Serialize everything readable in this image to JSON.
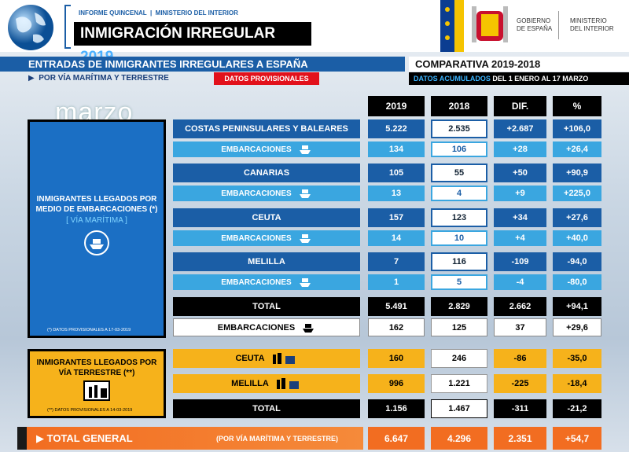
{
  "header": {
    "report": "INFORME QUINCENAL",
    "ministry": "MINISTERIO DEL INTERIOR",
    "title": "INMIGRACIÓN IRREGULAR",
    "year": "2019",
    "gov_line1": "GOBIERNO",
    "gov_line2": "DE ESPAÑA",
    "min_line1": "MINISTERIO",
    "min_line2": "DEL INTERIOR"
  },
  "banner": {
    "title": "ENTRADAS DE INMIGRANTES IRREGULARES A ESPAÑA",
    "comparison": "COMPARATIVA  2019-2018",
    "subtitle": "POR VÍA MARÍTIMA Y TERRESTRE",
    "provisional": "DATOS PROVISIONALES",
    "accumulated": "DATOS ACUMULADOS",
    "period": "DEL 1 ENERO AL 17 MARZO"
  },
  "month": "marzo",
  "maritime_box": {
    "heading": "INMIGRANTES LLEGADOS POR MEDIO DE EMBARCACIONES (*)",
    "route": "[ VÍA MARÍTIMA ]",
    "note": "(*) DATOS PROVISIONALES A 17-03-2019"
  },
  "land_box": {
    "heading": "INMIGRANTES LLEGADOS POR VÍA TERRESTRE (**)",
    "note": "(**) DATOS PROVISIONALES A 14-03-2019"
  },
  "table": {
    "columns": [
      "2019",
      "2018",
      "DIF.",
      "%"
    ],
    "rows": [
      {
        "label": "COSTAS PENINSULARES Y BALEARES",
        "values": [
          "5.222",
          "2.535",
          "+2.687",
          "+106,0"
        ]
      },
      {
        "label": "EMBARCACIONES",
        "values": [
          "134",
          "106",
          "+28",
          "+26,4"
        ]
      },
      {
        "label": "CANARIAS",
        "values": [
          "105",
          "55",
          "+50",
          "+90,9"
        ]
      },
      {
        "label": "EMBARCACIONES",
        "values": [
          "13",
          "4",
          "+9",
          "+225,0"
        ]
      },
      {
        "label": "CEUTA",
        "values": [
          "157",
          "123",
          "+34",
          "+27,6"
        ]
      },
      {
        "label": "EMBARCACIONES",
        "values": [
          "14",
          "10",
          "+4",
          "+40,0"
        ]
      },
      {
        "label": "MELILLA",
        "values": [
          "7",
          "116",
          "-109",
          "-94,0"
        ]
      },
      {
        "label": "EMBARCACIONES",
        "values": [
          "1",
          "5",
          "-4",
          "-80,0"
        ]
      },
      {
        "label": "TOTAL",
        "values": [
          "5.491",
          "2.829",
          "2.662",
          "+94,1"
        ]
      },
      {
        "label": "EMBARCACIONES",
        "values": [
          "162",
          "125",
          "37",
          "+29,6"
        ]
      },
      {
        "label": "CEUTA",
        "values": [
          "160",
          "246",
          "-86",
          "-35,0"
        ]
      },
      {
        "label": "MELILLA",
        "values": [
          "996",
          "1.221",
          "-225",
          "-18,4"
        ]
      },
      {
        "label": "TOTAL",
        "values": [
          "1.156",
          "1.467",
          "-311",
          "-21,2"
        ]
      }
    ]
  },
  "footer": {
    "label": "TOTAL GENERAL",
    "note": "(POR VÍA MARÍTIMA Y TERRESTRE)",
    "values": [
      "6.647",
      "4.296",
      "2.351",
      "+54,7"
    ]
  }
}
